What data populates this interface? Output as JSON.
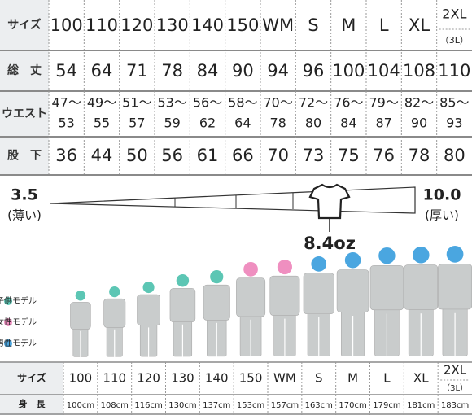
{
  "size_table": {
    "labels": [
      "サイズ",
      "総　丈",
      "ウエスト",
      "股　下"
    ],
    "sizes": [
      "100",
      "110",
      "120",
      "130",
      "140",
      "150",
      "WM",
      "S",
      "M",
      "L",
      "XL",
      "2XL"
    ],
    "size_colors": [
      "#17a99a",
      "#17a99a",
      "#17a99a",
      "#17a99a",
      "#17a99a",
      "#17a99a",
      "#e0449a",
      "#1e8fd5",
      "#1e8fd5",
      "#1e8fd5",
      "#1e8fd5",
      "#1e8fd5"
    ],
    "last_size_note": "（3L）",
    "length": [
      54,
      64,
      71,
      78,
      84,
      90,
      94,
      96,
      100,
      104,
      108,
      110
    ],
    "waist": [
      [
        "47〜",
        "53"
      ],
      [
        "49〜",
        "55"
      ],
      [
        "51〜",
        "57"
      ],
      [
        "53〜",
        "59"
      ],
      [
        "56〜",
        "62"
      ],
      [
        "58〜",
        "64"
      ],
      [
        "70〜",
        "78"
      ],
      [
        "72〜",
        "80"
      ],
      [
        "76〜",
        "84"
      ],
      [
        "79〜",
        "87"
      ],
      [
        "82〜",
        "90"
      ],
      [
        "85〜",
        "93"
      ]
    ],
    "inseam": [
      36,
      44,
      50,
      56,
      61,
      66,
      70,
      73,
      75,
      76,
      78,
      80
    ]
  },
  "thickness": {
    "min": "3.5",
    "min_label": "(薄い)",
    "max": "10.0",
    "max_label": "(厚い)",
    "value": "8.4oz"
  },
  "legend": [
    {
      "label": "子供モデル",
      "color": "#5cc6b4"
    },
    {
      "label": "女性モデル",
      "color": "#ef8fc0"
    },
    {
      "label": "男性モデル",
      "color": "#4aa6e0"
    }
  ],
  "model_table": {
    "labels": [
      "サイズ",
      "身　長"
    ],
    "sizes": [
      "100",
      "110",
      "120",
      "130",
      "140",
      "150",
      "WM",
      "S",
      "M",
      "L",
      "XL",
      "2XL"
    ],
    "last_size_note": "（3L）",
    "heights": [
      "100cm",
      "108cm",
      "116cm",
      "130cm",
      "137cm",
      "153cm",
      "157cm",
      "163cm",
      "170cm",
      "179cm",
      "181cm",
      "183cm"
    ]
  }
}
